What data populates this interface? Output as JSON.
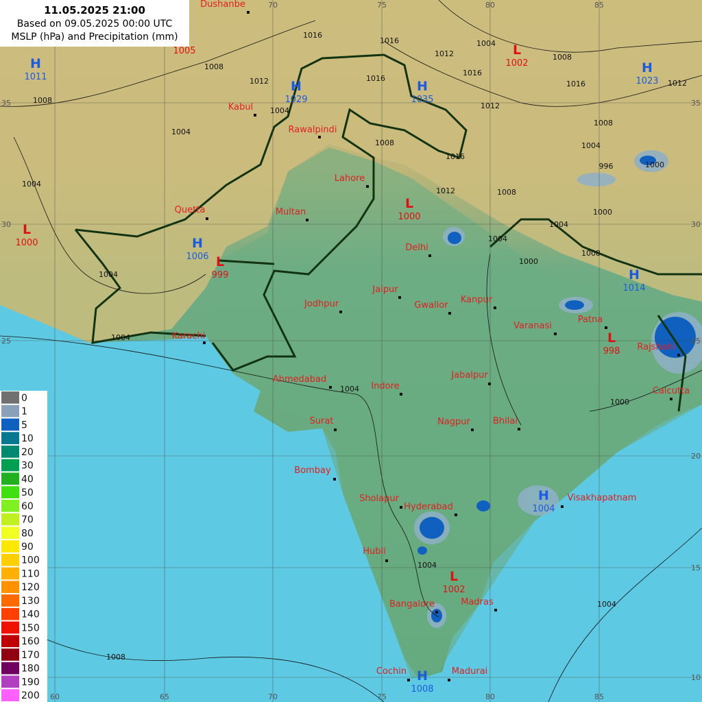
{
  "header": {
    "valid_time": "11.05.2025 21:00",
    "based_on": "Based on 09.05.2025 00:00 UTC",
    "parameters": "MSLP (hPa) and Precipitation (mm)"
  },
  "longitudes": [
    60,
    65,
    70,
    75,
    80,
    85
  ],
  "latitudes": [
    35,
    30,
    25,
    20,
    15,
    10
  ],
  "cities": [
    "Dushanbe",
    "Kabul",
    "Rawalpindi",
    "Lahore",
    "Quetta",
    "Multan",
    "Delhi",
    "Jaipur",
    "Jodhpur",
    "Gwalior",
    "Kanpur",
    "Varanasi",
    "Patna",
    "Rajshahi",
    "Karachi",
    "Ahmedabad",
    "Indore",
    "Jabalpur",
    "Calcutta",
    "Surat",
    "Nagpur",
    "Bhilai",
    "Bombay",
    "Sholapur",
    "Hyderabad",
    "Visakhapatnam",
    "Hubli",
    "Madras",
    "Bangalore",
    "Cochin",
    "Madurai"
  ],
  "pressure_centers": [
    {
      "type": "H",
      "value": 1011
    },
    {
      "type": "H",
      "value": 1029
    },
    {
      "type": "H",
      "value": 1035
    },
    {
      "type": "L",
      "value": 1002
    },
    {
      "type": "H",
      "value": 1023
    },
    {
      "type": "L",
      "value": 1000
    },
    {
      "type": "L",
      "value": 1000
    },
    {
      "type": "H",
      "value": 1006
    },
    {
      "type": "L",
      "value": 999
    },
    {
      "type": "H",
      "value": 1014
    },
    {
      "type": "L",
      "value": 998
    },
    {
      "type": "H",
      "value": 1004
    },
    {
      "type": "L",
      "value": 1002
    },
    {
      "type": "H",
      "value": 1008
    }
  ],
  "extra_pressure_values": [
    1005
  ],
  "isobar_labels": [
    1016,
    1012,
    1008,
    1008,
    1004,
    1004,
    1004,
    1004,
    1004,
    1004,
    1004,
    1012,
    1016,
    1016,
    1012,
    1008,
    1016,
    1016,
    1008,
    1012,
    1008,
    1004,
    996,
    1000,
    1016,
    1012,
    1008,
    1004,
    1000,
    1004,
    1000,
    1008,
    1000,
    1004,
    1004,
    1008
  ],
  "legend": {
    "values": [
      0,
      1,
      5,
      10,
      20,
      30,
      40,
      50,
      60,
      70,
      80,
      90,
      100,
      110,
      120,
      130,
      140,
      150,
      160,
      170,
      180,
      190,
      200
    ],
    "colors": [
      "#707070",
      "#8aa0b8",
      "#1060c0",
      "#087890",
      "#008a70",
      "#00a050",
      "#20b020",
      "#40e010",
      "#80f020",
      "#c0f020",
      "#f0ff20",
      "#ffe800",
      "#ffd000",
      "#ffb000",
      "#ff9000",
      "#ff6a00",
      "#ff4000",
      "#f01000",
      "#c00000",
      "#900010",
      "#700060",
      "#b040c0",
      "#ff60ff"
    ]
  }
}
